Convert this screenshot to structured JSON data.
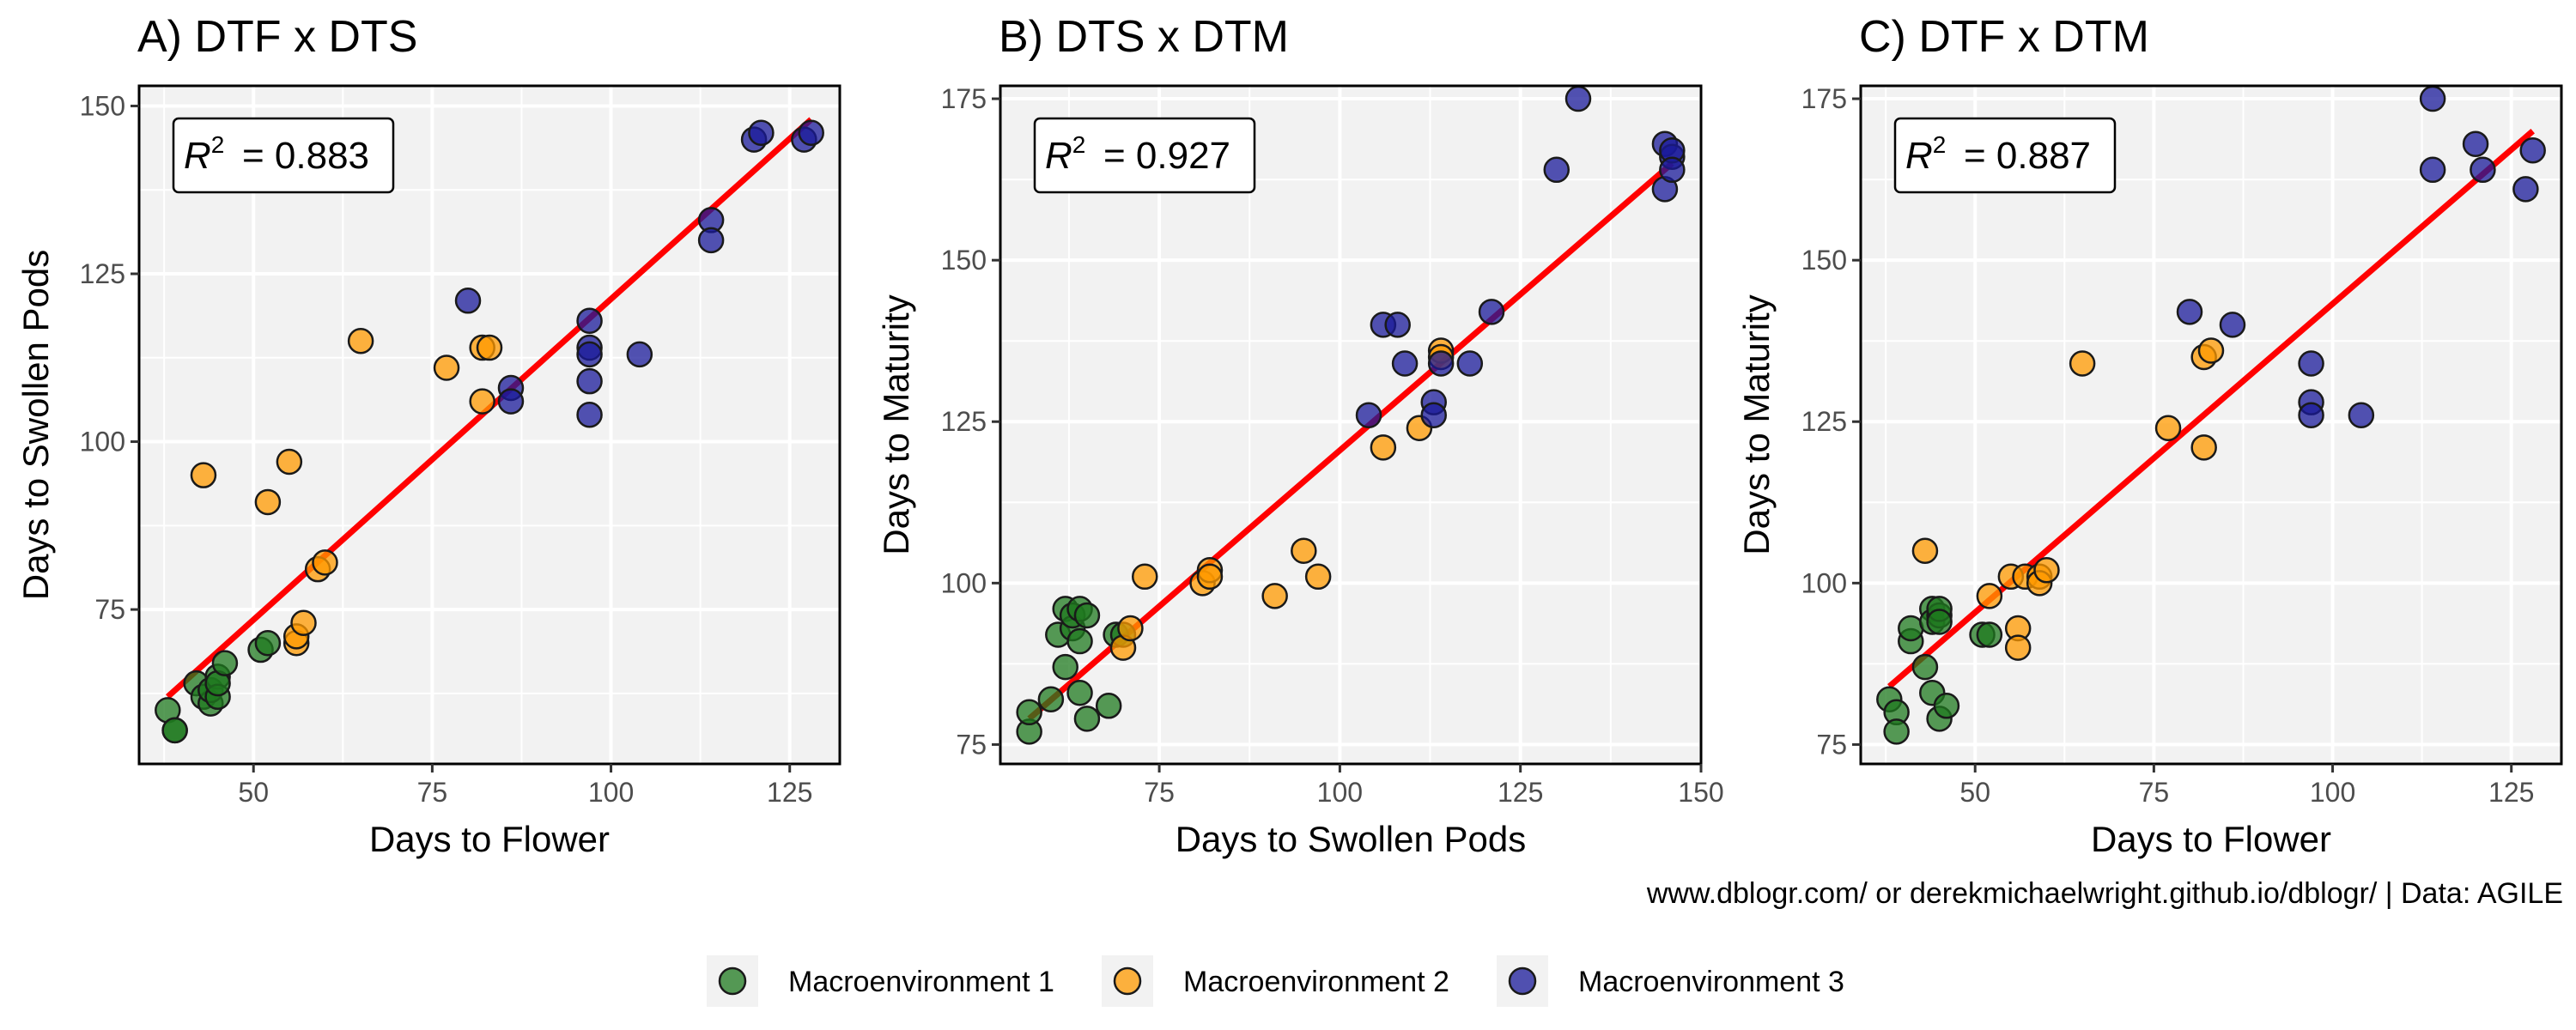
{
  "caption": "www.dblogr.com/ or derekmichaelwright.github.io/dblogr/ | Data: AGILE",
  "colors": {
    "panel_background": "#f2f2f2",
    "grid": "#ffffff",
    "fit_line": "#ff0000",
    "point_outline": "#1a1a1a"
  },
  "legend": {
    "position": "bottom",
    "items": [
      {
        "label": "Macroenvironment 1",
        "color": "#1f7a1f"
      },
      {
        "label": "Macroenvironment 2",
        "color": "#ff9900"
      },
      {
        "label": "Macroenvironment 3",
        "color": "#1a1a99"
      }
    ]
  },
  "chart_data": [
    {
      "type": "scatter",
      "title": "A) DTF x DTS",
      "xlabel": "Days to Flower",
      "ylabel": "Days to Swollen Pods",
      "r2_label": "= 0.883",
      "xlim": [
        34,
        132
      ],
      "ylim": [
        52,
        153
      ],
      "xticks": [
        50,
        75,
        100,
        125
      ],
      "yticks": [
        75,
        100,
        125,
        150
      ],
      "fit_line": {
        "x": [
          38,
          128
        ],
        "y": [
          62,
          148
        ]
      },
      "series": [
        {
          "points": [
            [
              38,
              60
            ],
            [
              39,
              57
            ],
            [
              39,
              57
            ],
            [
              42,
              64
            ],
            [
              43,
              62
            ],
            [
              44,
              61
            ],
            [
              44,
              63
            ],
            [
              45,
              65
            ],
            [
              45,
              62
            ],
            [
              45,
              64
            ],
            [
              46,
              67
            ],
            [
              51,
              69
            ],
            [
              52,
              70
            ]
          ]
        },
        {
          "points": [
            [
              43,
              95
            ],
            [
              52,
              91
            ],
            [
              55,
              97
            ],
            [
              56,
              70
            ],
            [
              56,
              71
            ],
            [
              57,
              73
            ],
            [
              59,
              81
            ],
            [
              60,
              82
            ],
            [
              65,
              115
            ],
            [
              77,
              111
            ],
            [
              82,
              114
            ],
            [
              82,
              106
            ],
            [
              83,
              114
            ]
          ]
        },
        {
          "points": [
            [
              80,
              121
            ],
            [
              86,
              108
            ],
            [
              86,
              106
            ],
            [
              97,
              118
            ],
            [
              97,
              114
            ],
            [
              97,
              113
            ],
            [
              97,
              109
            ],
            [
              97,
              104
            ],
            [
              104,
              113
            ],
            [
              114,
              133
            ],
            [
              114,
              130
            ],
            [
              120,
              145
            ],
            [
              121,
              146
            ],
            [
              127,
              145
            ],
            [
              128,
              146
            ]
          ]
        }
      ]
    },
    {
      "type": "scatter",
      "title": "B) DTS x DTM",
      "xlabel": "Days to Swollen Pods",
      "ylabel": "Days to Maturity",
      "r2_label": "= 0.927",
      "xlim": [
        53,
        150
      ],
      "ylim": [
        72,
        177
      ],
      "xticks": [
        75,
        100,
        125,
        150
      ],
      "yticks": [
        75,
        100,
        125,
        150,
        175
      ],
      "fit_line": {
        "x": [
          57,
          146
        ],
        "y": [
          79,
          165
        ]
      },
      "series": [
        {
          "points": [
            [
              57,
              77
            ],
            [
              57,
              80
            ],
            [
              60,
              82
            ],
            [
              61,
              92
            ],
            [
              62,
              87
            ],
            [
              62,
              96
            ],
            [
              63,
              93
            ],
            [
              63,
              95
            ],
            [
              64,
              91
            ],
            [
              64,
              83
            ],
            [
              64,
              96
            ],
            [
              65,
              79
            ],
            [
              65,
              95
            ],
            [
              68,
              81
            ],
            [
              69,
              92
            ],
            [
              70,
              92
            ]
          ]
        },
        {
          "points": [
            [
              70,
              90
            ],
            [
              71,
              93
            ],
            [
              73,
              101
            ],
            [
              81,
              100
            ],
            [
              82,
              102
            ],
            [
              82,
              101
            ],
            [
              91,
              98
            ],
            [
              95,
              105
            ],
            [
              97,
              101
            ],
            [
              106,
              121
            ],
            [
              111,
              124
            ],
            [
              114,
              136
            ],
            [
              114,
              135
            ]
          ]
        },
        {
          "points": [
            [
              104,
              126
            ],
            [
              106,
              140
            ],
            [
              108,
              140
            ],
            [
              109,
              134
            ],
            [
              113,
              128
            ],
            [
              113,
              126
            ],
            [
              114,
              134
            ],
            [
              118,
              134
            ],
            [
              121,
              142
            ],
            [
              130,
              164
            ],
            [
              133,
              175
            ],
            [
              145,
              168
            ],
            [
              145,
              161
            ],
            [
              146,
              166
            ],
            [
              146,
              167
            ],
            [
              146,
              164
            ]
          ]
        }
      ]
    },
    {
      "type": "scatter",
      "title": "C) DTF x DTM",
      "xlabel": "Days to Flower",
      "ylabel": "Days to Maturity",
      "r2_label": "= 0.887",
      "xlim": [
        34,
        132
      ],
      "ylim": [
        72,
        177
      ],
      "xticks": [
        50,
        75,
        100,
        125
      ],
      "yticks": [
        75,
        100,
        125,
        150,
        175
      ],
      "fit_line": {
        "x": [
          38,
          128
        ],
        "y": [
          84,
          170
        ]
      },
      "series": [
        {
          "points": [
            [
              38,
              82
            ],
            [
              39,
              80
            ],
            [
              39,
              77
            ],
            [
              41,
              91
            ],
            [
              41,
              93
            ],
            [
              43,
              87
            ],
            [
              44,
              96
            ],
            [
              44,
              94
            ],
            [
              44,
              83
            ],
            [
              45,
              95
            ],
            [
              45,
              79
            ],
            [
              45,
              96
            ],
            [
              45,
              94
            ],
            [
              46,
              81
            ],
            [
              51,
              92
            ],
            [
              52,
              92
            ]
          ]
        },
        {
          "points": [
            [
              43,
              105
            ],
            [
              52,
              98
            ],
            [
              55,
              101
            ],
            [
              56,
              93
            ],
            [
              56,
              90
            ],
            [
              57,
              101
            ],
            [
              59,
              101
            ],
            [
              59,
              100
            ],
            [
              60,
              102
            ],
            [
              65,
              134
            ],
            [
              77,
              124
            ],
            [
              82,
              121
            ],
            [
              82,
              135
            ],
            [
              83,
              136
            ]
          ]
        },
        {
          "points": [
            [
              80,
              142
            ],
            [
              86,
              140
            ],
            [
              97,
              134
            ],
            [
              97,
              128
            ],
            [
              97,
              126
            ],
            [
              104,
              126
            ],
            [
              114,
              164
            ],
            [
              114,
              175
            ],
            [
              120,
              168
            ],
            [
              121,
              164
            ],
            [
              127,
              161
            ],
            [
              128,
              167
            ]
          ]
        }
      ]
    }
  ]
}
